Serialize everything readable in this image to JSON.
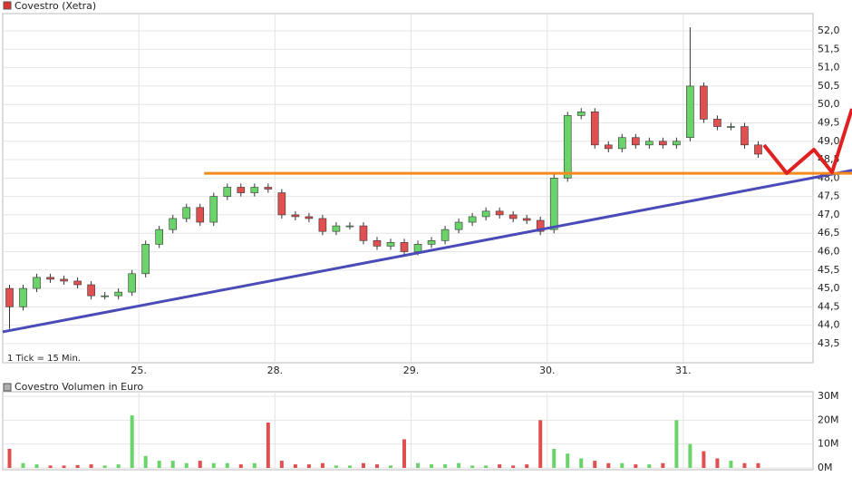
{
  "chart_data": [
    {
      "type": "candlestick",
      "title": "Covestro (Xetra)",
      "annotation": "1 Tick = 15 Min.",
      "legend_color": "#e03030",
      "up_color": "#6ad46a",
      "down_color": "#e05050",
      "wick_color": "#333333",
      "grid": true,
      "x": [
        0.05,
        0.15,
        0.25,
        0.35,
        0.45,
        0.55,
        0.65,
        0.75,
        0.85,
        0.95,
        1.05,
        1.15,
        1.25,
        1.35,
        1.45,
        1.55,
        1.65,
        1.75,
        1.85,
        1.95,
        2.05,
        2.15,
        2.25,
        2.35,
        2.45,
        2.55,
        2.65,
        2.75,
        2.85,
        2.95,
        3.05,
        3.15,
        3.25,
        3.35,
        3.45,
        3.55,
        3.65,
        3.75,
        3.85,
        3.95,
        4.05,
        4.15,
        4.25,
        4.35,
        4.45,
        4.55,
        4.65,
        4.75,
        4.85,
        4.95,
        5.05,
        5.15,
        5.25,
        5.35,
        5.45,
        5.55
      ],
      "open": [
        45.0,
        44.5,
        45.0,
        45.3,
        45.25,
        45.2,
        45.1,
        44.8,
        44.8,
        44.9,
        45.4,
        46.2,
        46.6,
        46.9,
        47.2,
        46.8,
        47.5,
        47.75,
        47.6,
        47.75,
        47.6,
        47.0,
        46.95,
        46.9,
        46.55,
        46.7,
        46.7,
        46.3,
        46.15,
        46.25,
        46.0,
        46.2,
        46.3,
        46.6,
        46.8,
        46.95,
        47.1,
        47.0,
        46.9,
        46.85,
        46.6,
        48.0,
        49.7,
        49.8,
        48.9,
        48.8,
        49.1,
        48.9,
        49.0,
        48.9,
        49.1,
        50.5,
        49.6,
        49.4,
        49.4,
        48.9
      ],
      "high": [
        45.1,
        45.1,
        45.4,
        45.4,
        45.35,
        45.3,
        45.2,
        44.9,
        45.0,
        45.5,
        46.3,
        46.7,
        47.0,
        47.3,
        47.3,
        47.6,
        47.85,
        47.85,
        47.85,
        47.85,
        47.7,
        47.1,
        47.05,
        47.0,
        46.8,
        46.8,
        46.8,
        46.4,
        46.35,
        46.35,
        46.3,
        46.4,
        46.7,
        46.9,
        47.05,
        47.2,
        47.2,
        47.1,
        47.0,
        46.95,
        48.1,
        49.8,
        49.9,
        49.9,
        49.0,
        49.2,
        49.2,
        49.1,
        49.1,
        49.1,
        52.1,
        50.6,
        49.7,
        49.5,
        49.5,
        49.0
      ],
      "low": [
        43.9,
        44.4,
        44.9,
        45.15,
        45.1,
        45.0,
        44.7,
        44.7,
        44.7,
        44.8,
        45.3,
        46.1,
        46.5,
        46.8,
        46.7,
        46.7,
        47.4,
        47.5,
        47.5,
        47.6,
        46.9,
        46.85,
        46.8,
        46.45,
        46.45,
        46.6,
        46.2,
        46.05,
        46.05,
        45.9,
        45.9,
        46.1,
        46.2,
        46.5,
        46.7,
        46.85,
        46.9,
        46.8,
        46.75,
        46.45,
        46.5,
        47.9,
        49.6,
        48.8,
        48.7,
        48.7,
        48.8,
        48.8,
        48.8,
        48.8,
        49.0,
        49.5,
        49.3,
        49.3,
        48.8,
        48.55
      ],
      "close": [
        44.5,
        45.0,
        45.3,
        45.25,
        45.2,
        45.1,
        44.8,
        44.8,
        44.9,
        45.4,
        46.2,
        46.6,
        46.9,
        47.2,
        46.8,
        47.5,
        47.75,
        47.6,
        47.75,
        47.7,
        47.0,
        46.95,
        46.9,
        46.55,
        46.7,
        46.7,
        46.3,
        46.15,
        46.25,
        46.0,
        46.2,
        46.3,
        46.6,
        46.8,
        46.95,
        47.1,
        47.0,
        46.9,
        46.85,
        46.55,
        48.0,
        49.7,
        49.8,
        48.9,
        48.8,
        49.1,
        48.9,
        49.0,
        48.9,
        49.0,
        50.5,
        49.6,
        49.4,
        49.4,
        48.9,
        48.65
      ],
      "xlim": [
        0,
        5.953
      ],
      "xticks": [
        {
          "value": 1,
          "label": "25."
        },
        {
          "value": 2,
          "label": "28."
        },
        {
          "value": 3,
          "label": "29."
        },
        {
          "value": 4,
          "label": "30."
        },
        {
          "value": 5,
          "label": "31."
        }
      ],
      "ylim": [
        42.98,
        52.47
      ],
      "yticks": [
        {
          "value": 43.5,
          "label": "43,5"
        },
        {
          "value": 44,
          "label": "44,0"
        },
        {
          "value": 44.5,
          "label": "44,5"
        },
        {
          "value": 45,
          "label": "45,0"
        },
        {
          "value": 45.5,
          "label": "45,5"
        },
        {
          "value": 46,
          "label": "46,0"
        },
        {
          "value": 46.5,
          "label": "46,5"
        },
        {
          "value": 47,
          "label": "47,0"
        },
        {
          "value": 47.5,
          "label": "47,5"
        },
        {
          "value": 48,
          "label": "48,0"
        },
        {
          "value": 48.5,
          "label": "48,5"
        },
        {
          "value": 49,
          "label": "49,0"
        },
        {
          "value": 49.5,
          "label": "49,5"
        },
        {
          "value": 50,
          "label": "50,0"
        },
        {
          "value": 50.5,
          "label": "50,5"
        },
        {
          "value": 51,
          "label": "51,0"
        },
        {
          "value": 51.5,
          "label": "51,5"
        },
        {
          "value": 52,
          "label": "52,0"
        }
      ],
      "trendlines": [
        {
          "color": "#4a4ab8",
          "x": [
            0,
            6.24
          ],
          "y": [
            43.82,
            48.21
          ]
        },
        {
          "color": "#f58a1f",
          "x": [
            1.48,
            6.24
          ],
          "y": [
            48.13,
            48.13
          ]
        }
      ]
    },
    {
      "type": "bar",
      "title": "Covestro Volumen in Euro",
      "legend_color": "#b0b0b0",
      "up_color": "#6ad46a",
      "down_color": "#e05050",
      "grid": true,
      "x": [
        0.05,
        0.15,
        0.25,
        0.35,
        0.45,
        0.55,
        0.65,
        0.75,
        0.85,
        0.95,
        1.05,
        1.15,
        1.25,
        1.35,
        1.45,
        1.55,
        1.65,
        1.75,
        1.85,
        1.95,
        2.05,
        2.15,
        2.25,
        2.35,
        2.45,
        2.55,
        2.65,
        2.75,
        2.85,
        2.95,
        3.05,
        3.15,
        3.25,
        3.35,
        3.45,
        3.55,
        3.65,
        3.75,
        3.85,
        3.95,
        4.05,
        4.15,
        4.25,
        4.35,
        4.45,
        4.55,
        4.65,
        4.75,
        4.85,
        4.95,
        5.05,
        5.15,
        5.25,
        5.35,
        5.45,
        5.55
      ],
      "values": [
        8000000,
        2000000,
        1500000,
        1000000,
        1000000,
        1200000,
        1500000,
        1000000,
        1500000,
        22000000,
        5000000,
        3000000,
        3000000,
        2000000,
        3000000,
        2000000,
        2000000,
        1500000,
        2000000,
        19000000,
        3000000,
        1500000,
        1500000,
        2000000,
        1000000,
        1000000,
        2000000,
        1500000,
        1000000,
        12000000,
        2000000,
        1500000,
        1500000,
        2000000,
        1000000,
        1000000,
        1500000,
        1000000,
        1500000,
        20000000,
        8000000,
        6000000,
        4000000,
        3000000,
        2000000,
        2000000,
        1500000,
        1500000,
        2000000,
        20000000,
        10000000,
        7000000,
        4000000,
        3000000,
        2000000,
        2000000
      ],
      "xlim": [
        0,
        5.953
      ],
      "ylim": [
        -760000,
        31900000
      ],
      "yticks": [
        {
          "value": 0,
          "label": "0M"
        },
        {
          "value": 10000000,
          "label": "10M"
        },
        {
          "value": 20000000,
          "label": "20M"
        },
        {
          "value": 30000000,
          "label": "30M"
        }
      ]
    }
  ]
}
